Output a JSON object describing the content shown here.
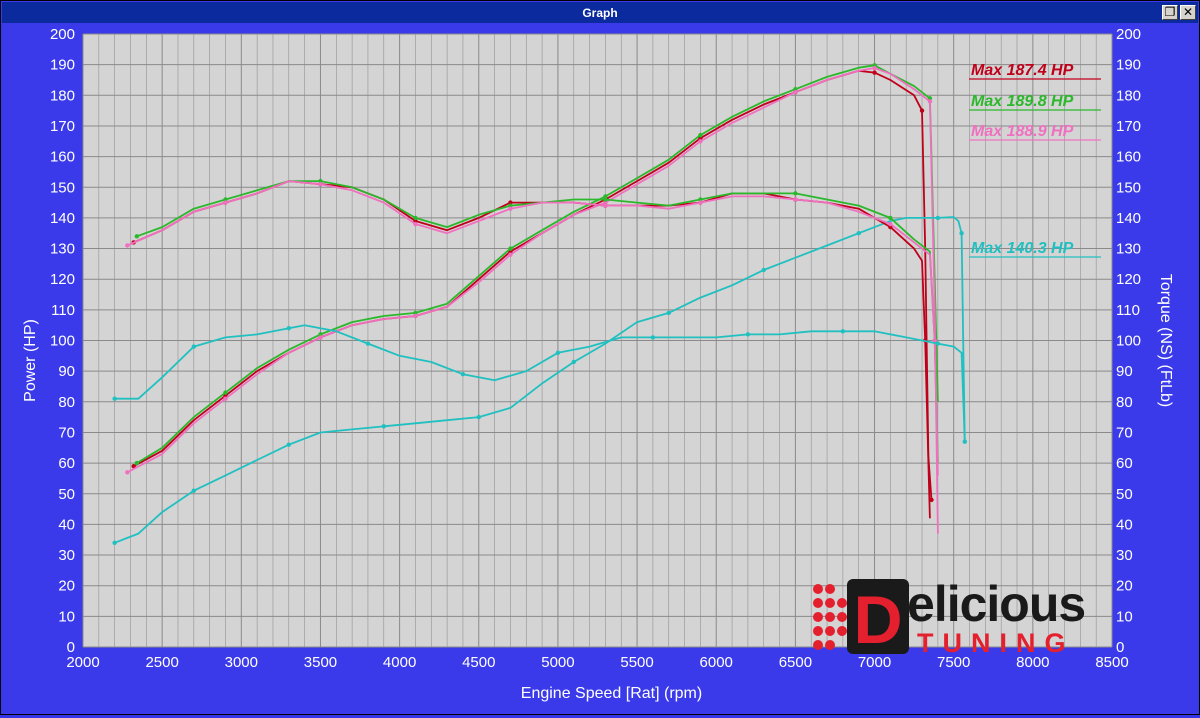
{
  "window": {
    "title": "Graph",
    "restore_icon": "restore-icon",
    "close_icon": "close-icon",
    "close_glyph": "✕",
    "restore_glyph": "❐"
  },
  "colors": {
    "background": "#3a3aea",
    "plot_bg": "#d4d4d4",
    "grid": "#8a8a8a",
    "axis_text": "#ffffff",
    "red": "#c0001a",
    "green": "#2bb82b",
    "pink": "#f070c0",
    "cyan": "#20c0c0"
  },
  "logo": {
    "word1": "elicious",
    "letter": "D",
    "word2": "TUNING"
  },
  "chart_data": {
    "type": "line",
    "xlabel": "Engine Speed [Rat] (rpm)",
    "ylabel": "Power (HP)",
    "y2label": "Torque (NS) (FtLb)",
    "xlim": [
      2000,
      8500
    ],
    "ylim": [
      0,
      200
    ],
    "y2lim": [
      0,
      200
    ],
    "x_ticks": [
      2000,
      2500,
      3000,
      3500,
      4000,
      4500,
      5000,
      5500,
      6000,
      6500,
      7000,
      7500,
      8000,
      8500
    ],
    "y_ticks": [
      0,
      10,
      20,
      30,
      40,
      50,
      60,
      70,
      80,
      90,
      100,
      110,
      120,
      130,
      140,
      150,
      160,
      170,
      180,
      190,
      200
    ],
    "grid": true,
    "legend": [
      {
        "label": "Max 187.4 HP",
        "color": "#c0001a"
      },
      {
        "label": "Max 189.8 HP",
        "color": "#2bb82b"
      },
      {
        "label": "Max 188.9 HP",
        "color": "#f070c0"
      },
      {
        "label": "Max 140.3 HP",
        "color": "#20c0c0"
      }
    ],
    "series": [
      {
        "name": "Max 187.4 HP",
        "kind": "power",
        "color": "#c0001a",
        "points": [
          [
            2320,
            59
          ],
          [
            2500,
            64
          ],
          [
            2700,
            74
          ],
          [
            2900,
            82
          ],
          [
            3100,
            90
          ],
          [
            3300,
            96
          ],
          [
            3500,
            101
          ],
          [
            3700,
            105
          ],
          [
            3900,
            107
          ],
          [
            4100,
            108
          ],
          [
            4300,
            111
          ],
          [
            4500,
            120
          ],
          [
            4700,
            129
          ],
          [
            4900,
            135
          ],
          [
            5100,
            141
          ],
          [
            5300,
            146
          ],
          [
            5500,
            152
          ],
          [
            5700,
            158
          ],
          [
            5900,
            166
          ],
          [
            6100,
            172
          ],
          [
            6300,
            177
          ],
          [
            6500,
            181
          ],
          [
            6700,
            185
          ],
          [
            6900,
            188
          ],
          [
            7000,
            187.4
          ],
          [
            7100,
            185
          ],
          [
            7250,
            180
          ],
          [
            7300,
            175
          ],
          [
            7320,
            130
          ],
          [
            7340,
            62
          ],
          [
            7360,
            48
          ]
        ]
      },
      {
        "name": "Max 189.8 HP",
        "kind": "power",
        "color": "#2bb82b",
        "points": [
          [
            2340,
            60
          ],
          [
            2500,
            65
          ],
          [
            2700,
            75
          ],
          [
            2900,
            83
          ],
          [
            3100,
            91
          ],
          [
            3300,
            97
          ],
          [
            3500,
            102
          ],
          [
            3700,
            106
          ],
          [
            3900,
            108
          ],
          [
            4100,
            109
          ],
          [
            4300,
            112
          ],
          [
            4500,
            121
          ],
          [
            4700,
            130
          ],
          [
            4900,
            136
          ],
          [
            5100,
            142
          ],
          [
            5300,
            147
          ],
          [
            5500,
            153
          ],
          [
            5700,
            159
          ],
          [
            5900,
            167
          ],
          [
            6100,
            173
          ],
          [
            6300,
            178
          ],
          [
            6500,
            182
          ],
          [
            6700,
            186
          ],
          [
            6900,
            189
          ],
          [
            7000,
            189.8
          ],
          [
            7100,
            187
          ],
          [
            7250,
            183
          ],
          [
            7350,
            179
          ],
          [
            7380,
            120
          ],
          [
            7400,
            80
          ]
        ]
      },
      {
        "name": "Max 188.9 HP",
        "kind": "power",
        "color": "#f070c0",
        "points": [
          [
            2280,
            57
          ],
          [
            2500,
            63
          ],
          [
            2700,
            73
          ],
          [
            2900,
            81
          ],
          [
            3100,
            89
          ],
          [
            3300,
            96
          ],
          [
            3500,
            101
          ],
          [
            3700,
            105
          ],
          [
            3900,
            107
          ],
          [
            4100,
            108
          ],
          [
            4300,
            111
          ],
          [
            4500,
            119
          ],
          [
            4700,
            128
          ],
          [
            4900,
            135
          ],
          [
            5100,
            141
          ],
          [
            5300,
            145
          ],
          [
            5500,
            151
          ],
          [
            5700,
            157
          ],
          [
            5900,
            165
          ],
          [
            6100,
            171
          ],
          [
            6300,
            176
          ],
          [
            6500,
            181
          ],
          [
            6700,
            185
          ],
          [
            6900,
            188
          ],
          [
            7000,
            188.9
          ],
          [
            7100,
            187
          ],
          [
            7250,
            182
          ],
          [
            7350,
            178
          ],
          [
            7380,
            110
          ],
          [
            7400,
            37
          ]
        ]
      },
      {
        "name": "Max 140.3 HP",
        "kind": "power",
        "color": "#20c0c0",
        "points": [
          [
            2200,
            34
          ],
          [
            2350,
            37
          ],
          [
            2500,
            44
          ],
          [
            2700,
            51
          ],
          [
            2900,
            56
          ],
          [
            3100,
            61
          ],
          [
            3300,
            66
          ],
          [
            3500,
            70
          ],
          [
            3700,
            71
          ],
          [
            3900,
            72
          ],
          [
            4100,
            73
          ],
          [
            4300,
            74
          ],
          [
            4500,
            75
          ],
          [
            4700,
            78
          ],
          [
            4900,
            86
          ],
          [
            5100,
            93
          ],
          [
            5300,
            99
          ],
          [
            5500,
            106
          ],
          [
            5700,
            109
          ],
          [
            5900,
            114
          ],
          [
            6100,
            118
          ],
          [
            6300,
            123
          ],
          [
            6500,
            127
          ],
          [
            6700,
            131
          ],
          [
            6900,
            135
          ],
          [
            7100,
            139
          ],
          [
            7200,
            140
          ],
          [
            7400,
            140
          ],
          [
            7500,
            140.3
          ],
          [
            7530,
            139
          ],
          [
            7550,
            135
          ],
          [
            7560,
            100
          ],
          [
            7570,
            67
          ]
        ]
      },
      {
        "name": "Max 187.4 HP",
        "kind": "torque",
        "color": "#c0001a",
        "points": [
          [
            2320,
            132
          ],
          [
            2500,
            136
          ],
          [
            2700,
            142
          ],
          [
            2900,
            145
          ],
          [
            3100,
            148
          ],
          [
            3300,
            152
          ],
          [
            3500,
            151
          ],
          [
            3700,
            150
          ],
          [
            3900,
            146
          ],
          [
            4100,
            139
          ],
          [
            4300,
            136
          ],
          [
            4500,
            140
          ],
          [
            4700,
            145
          ],
          [
            4900,
            145
          ],
          [
            5100,
            145
          ],
          [
            5300,
            144
          ],
          [
            5500,
            144
          ],
          [
            5700,
            144
          ],
          [
            5900,
            145
          ],
          [
            6100,
            148
          ],
          [
            6300,
            148
          ],
          [
            6500,
            146
          ],
          [
            6700,
            145
          ],
          [
            6900,
            143
          ],
          [
            7100,
            137
          ],
          [
            7250,
            130
          ],
          [
            7300,
            126
          ],
          [
            7320,
            100
          ],
          [
            7340,
            60
          ],
          [
            7350,
            42
          ]
        ]
      },
      {
        "name": "Max 189.8 HP",
        "kind": "torque",
        "color": "#2bb82b",
        "points": [
          [
            2340,
            134
          ],
          [
            2500,
            137
          ],
          [
            2700,
            143
          ],
          [
            2900,
            146
          ],
          [
            3100,
            149
          ],
          [
            3300,
            152
          ],
          [
            3500,
            152
          ],
          [
            3700,
            150
          ],
          [
            3900,
            146
          ],
          [
            4100,
            140
          ],
          [
            4300,
            137
          ],
          [
            4500,
            141
          ],
          [
            4700,
            144
          ],
          [
            4900,
            145
          ],
          [
            5100,
            146
          ],
          [
            5300,
            146
          ],
          [
            5500,
            145
          ],
          [
            5700,
            144
          ],
          [
            5900,
            146
          ],
          [
            6100,
            148
          ],
          [
            6300,
            148
          ],
          [
            6500,
            148
          ],
          [
            6700,
            146
          ],
          [
            6900,
            144
          ],
          [
            7100,
            140
          ],
          [
            7250,
            133
          ],
          [
            7350,
            129
          ],
          [
            7380,
            100
          ],
          [
            7400,
            60
          ]
        ]
      },
      {
        "name": "Max 188.9 HP",
        "kind": "torque",
        "color": "#f070c0",
        "points": [
          [
            2280,
            131
          ],
          [
            2500,
            136
          ],
          [
            2700,
            142
          ],
          [
            2900,
            145
          ],
          [
            3100,
            148
          ],
          [
            3300,
            152
          ],
          [
            3500,
            151
          ],
          [
            3700,
            149
          ],
          [
            3900,
            145
          ],
          [
            4100,
            138
          ],
          [
            4300,
            135
          ],
          [
            4500,
            139
          ],
          [
            4700,
            143
          ],
          [
            4900,
            145
          ],
          [
            5100,
            145
          ],
          [
            5300,
            144
          ],
          [
            5500,
            144
          ],
          [
            5700,
            143
          ],
          [
            5900,
            145
          ],
          [
            6100,
            147
          ],
          [
            6300,
            147
          ],
          [
            6500,
            146
          ],
          [
            6700,
            145
          ],
          [
            6900,
            142
          ],
          [
            7100,
            138
          ],
          [
            7250,
            132
          ],
          [
            7350,
            128
          ],
          [
            7380,
            100
          ],
          [
            7400,
            56
          ]
        ]
      },
      {
        "name": "Max 140.3 HP",
        "kind": "torque",
        "color": "#20c0c0",
        "points": [
          [
            2200,
            81
          ],
          [
            2350,
            81
          ],
          [
            2500,
            88
          ],
          [
            2700,
            98
          ],
          [
            2900,
            101
          ],
          [
            3100,
            102
          ],
          [
            3300,
            104
          ],
          [
            3400,
            105
          ],
          [
            3600,
            103
          ],
          [
            3800,
            99
          ],
          [
            4000,
            95
          ],
          [
            4200,
            93
          ],
          [
            4400,
            89
          ],
          [
            4600,
            87
          ],
          [
            4800,
            90
          ],
          [
            5000,
            96
          ],
          [
            5200,
            98
          ],
          [
            5400,
            101
          ],
          [
            5600,
            101
          ],
          [
            5800,
            101
          ],
          [
            6000,
            101
          ],
          [
            6200,
            102
          ],
          [
            6400,
            102
          ],
          [
            6600,
            103
          ],
          [
            6800,
            103
          ],
          [
            7000,
            103
          ],
          [
            7200,
            101
          ],
          [
            7400,
            99
          ],
          [
            7500,
            98
          ],
          [
            7550,
            96
          ],
          [
            7570,
            67
          ]
        ]
      }
    ]
  }
}
